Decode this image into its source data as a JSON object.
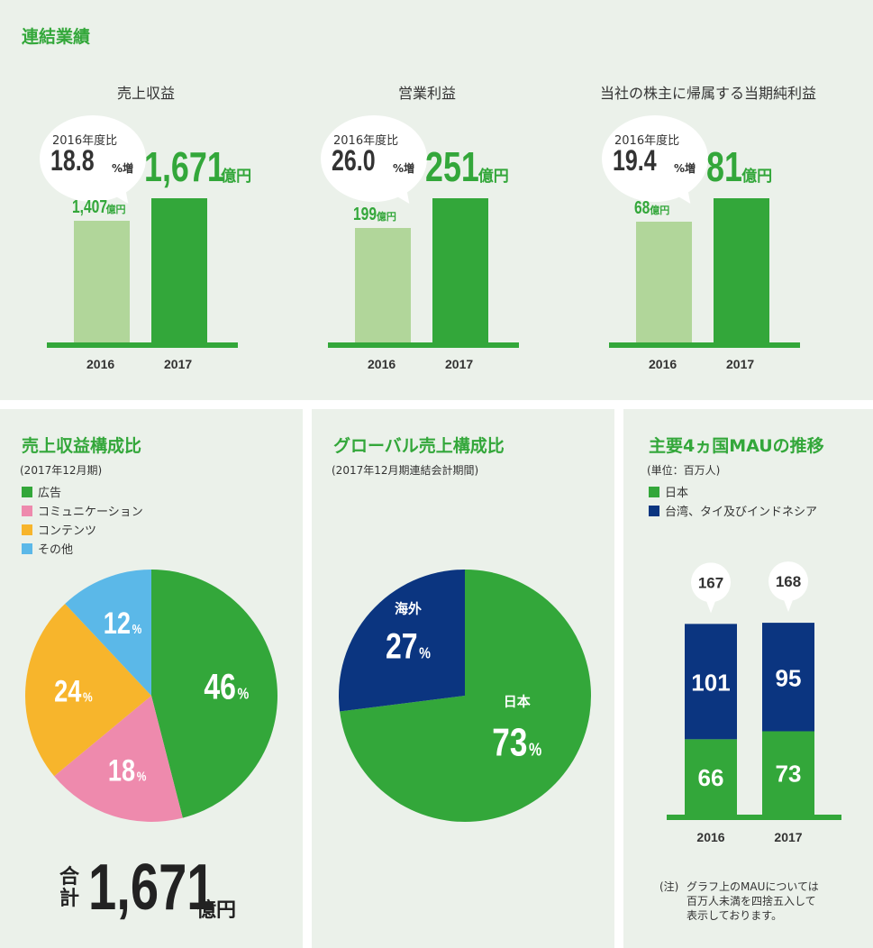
{
  "header": {
    "title": "連結業績"
  },
  "colors": {
    "green": "#33a73a",
    "light_green": "#b1d69a",
    "pink": "#ee8aad",
    "orange": "#f7b52c",
    "blue": "#5bb8e8",
    "navy": "#0b3580",
    "panel_bg": "#ebf1ea"
  },
  "chart_data": [
    {
      "type": "bar",
      "title": "売上収益",
      "categories": [
        "2016",
        "2017"
      ],
      "values": [
        1407,
        1671
      ],
      "value_labels": [
        "1,407",
        "1,671"
      ],
      "unit_small": "億円",
      "unit_big": "億円",
      "growth_label": "2016年度比",
      "growth_value": "18.8",
      "growth_unit": "%増"
    },
    {
      "type": "bar",
      "title": "営業利益",
      "categories": [
        "2016",
        "2017"
      ],
      "values": [
        199,
        251
      ],
      "value_labels": [
        "199",
        "251"
      ],
      "unit_small": "億円",
      "unit_big": "億円",
      "growth_label": "2016年度比",
      "growth_value": "26.0",
      "growth_unit": "%増"
    },
    {
      "type": "bar",
      "title": "当社の株主に帰属する当期純利益",
      "categories": [
        "2016",
        "2017"
      ],
      "values": [
        68,
        81
      ],
      "value_labels": [
        "68",
        "81"
      ],
      "unit_small": "億円",
      "unit_big": "億円",
      "growth_label": "2016年度比",
      "growth_value": "19.4",
      "growth_unit": "%増"
    },
    {
      "type": "pie",
      "title": "売上収益構成比",
      "subtitle": "(2017年12月期)",
      "categories": [
        "広告",
        "コミュニケーション",
        "コンテンツ",
        "その他"
      ],
      "values": [
        46,
        18,
        24,
        12
      ],
      "pct_unit": "%",
      "total_label_1": "合",
      "total_label_2": "計",
      "total_value": "1,671",
      "total_unit": "億円"
    },
    {
      "type": "pie",
      "title": "グローバル売上構成比",
      "subtitle": "(2017年12月期連結会計期間)",
      "categories": [
        "日本",
        "海外"
      ],
      "values": [
        73,
        27
      ],
      "pct_unit": "%"
    },
    {
      "type": "bar",
      "title": "主要4ヵ国MAUの推移",
      "subtitle": "(単位：百万人)",
      "categories": [
        "2016",
        "2017"
      ],
      "series": [
        {
          "name": "日本",
          "values": [
            66,
            73
          ]
        },
        {
          "name": "台湾、タイ及びインドネシア",
          "values": [
            101,
            95
          ]
        }
      ],
      "totals": [
        167,
        168
      ],
      "note_prefix": "(注)",
      "note_lines": [
        "グラフ上のMAUについては",
        "百万人未満を四捨五入して",
        "表示しております。"
      ]
    }
  ]
}
